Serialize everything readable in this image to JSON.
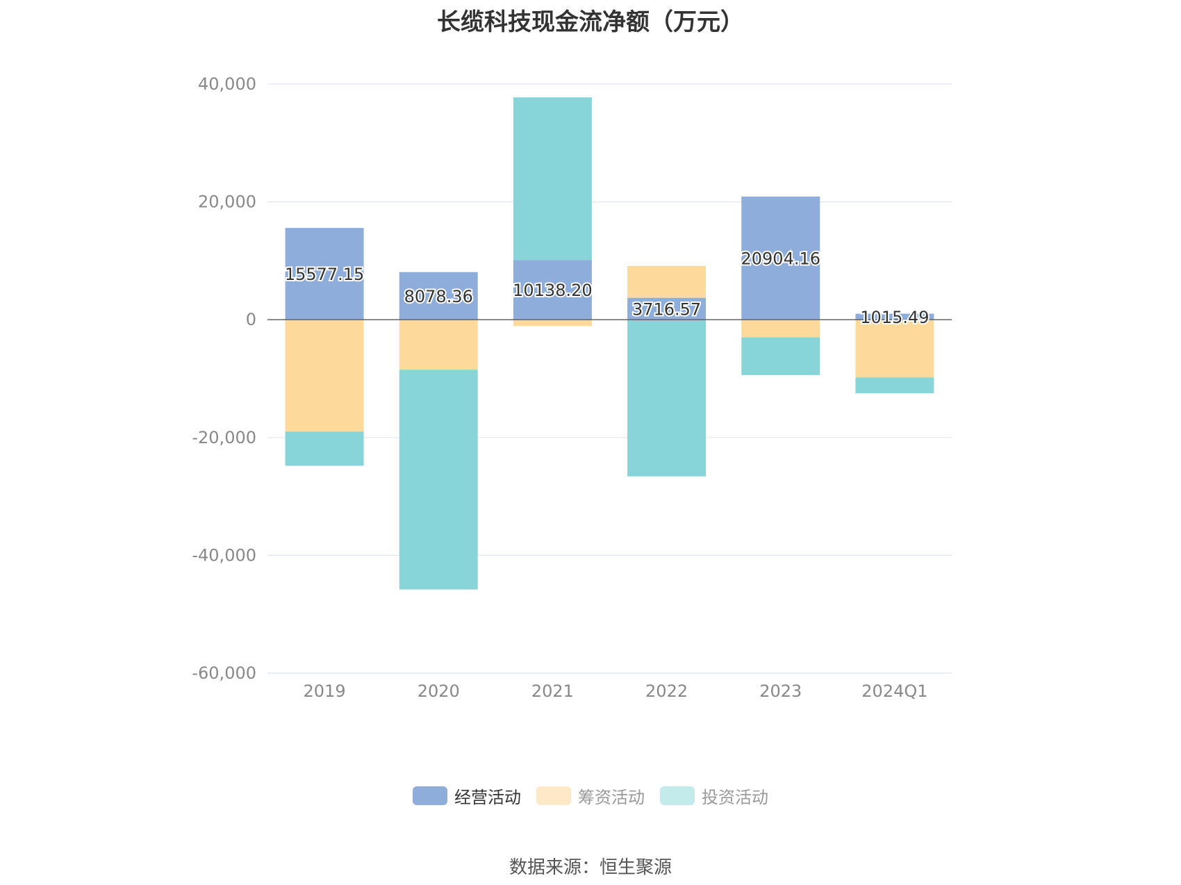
{
  "chart_data": {
    "type": "bar",
    "stacked": true,
    "title": "长缆科技现金流净额（万元）",
    "categories": [
      "2019",
      "2020",
      "2021",
      "2022",
      "2023",
      "2024Q1"
    ],
    "ylim": [
      -60000,
      40000
    ],
    "yticks": [
      40000,
      20000,
      0,
      -20000,
      -40000,
      -60000
    ],
    "ytick_labels": [
      "40,000",
      "20,000",
      "0",
      "-20,000",
      "-40,000",
      "-60,000"
    ],
    "grid": true,
    "legend_position": "bottom",
    "series": [
      {
        "name": "经营活动",
        "color": "#8eadda",
        "values": [
          15577.15,
          8078.36,
          10138.2,
          3716.57,
          20904.16,
          1015.49
        ],
        "labels": [
          "15577.15",
          "8078.36",
          "10138.20",
          "3716.57",
          "20904.16",
          "1015.49"
        ]
      },
      {
        "name": "筹资活动",
        "color": "#fdd99b",
        "values": [
          -19000,
          -8500,
          -1100,
          5400,
          -3000,
          -9800
        ]
      },
      {
        "name": "投资活动",
        "color": "#87d5d8",
        "values": [
          -5800,
          -37300,
          27600,
          -26600,
          -6400,
          -2700
        ]
      }
    ]
  },
  "legend": {
    "items": [
      {
        "label": "经营活动",
        "color": "#8eadda"
      },
      {
        "label": "筹资活动",
        "color": "#fde9c8"
      },
      {
        "label": "投资活动",
        "color": "#c3ebec"
      }
    ]
  },
  "source_note": "数据来源：恒生聚源"
}
